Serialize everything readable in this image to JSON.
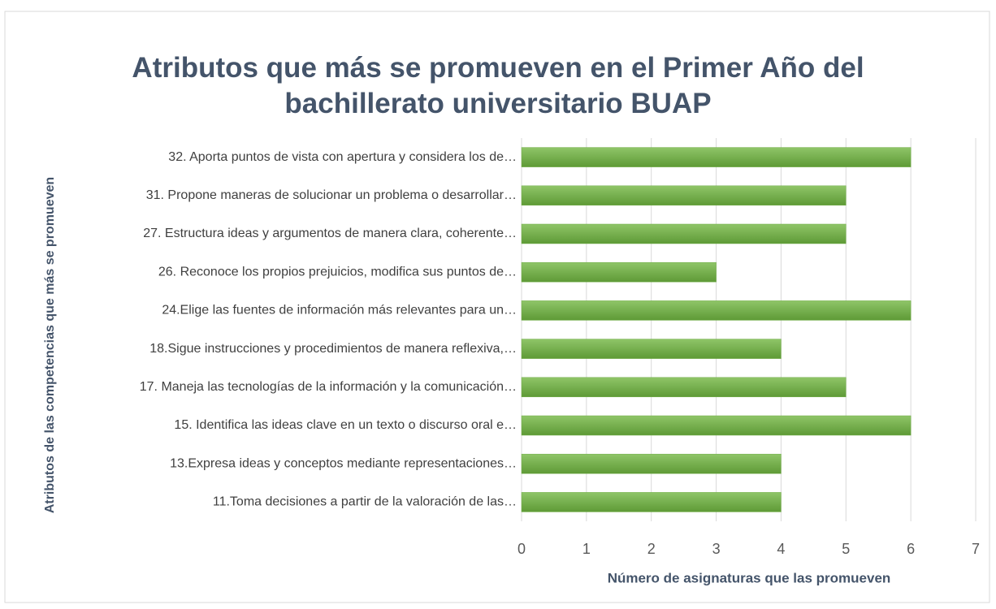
{
  "chart_data": {
    "type": "barh",
    "title": "Atributos que más se promueven en el Primer Año del bachillerato universitario BUAP",
    "xlabel": "Número de asignaturas que las promueven",
    "ylabel": "Atributos de las competencias que más se promueven",
    "categories": [
      "32. Aporta puntos de vista con apertura y considera los de…",
      "31. Propone maneras de solucionar un problema o desarrollar…",
      "27. Estructura ideas y argumentos de manera clara, coherente…",
      "26. Reconoce los propios prejuicios, modifica sus puntos de…",
      "24.Elige las fuentes de información más relevantes para un…",
      "18.Sigue instrucciones y procedimientos de manera reflexiva,…",
      "17. Maneja las tecnologías de la información y la comunicación…",
      "15. Identifica las ideas clave en un texto o discurso oral e…",
      "13.Expresa ideas y conceptos mediante representaciones…",
      "11.Toma decisiones a partir de la valoración de las…"
    ],
    "values": [
      6,
      5,
      5,
      3,
      6,
      4,
      5,
      6,
      4,
      4
    ],
    "color": "#70ad47",
    "xlim": [
      0,
      7
    ],
    "xticks": [
      0,
      1,
      2,
      3,
      4,
      5,
      6,
      7
    ],
    "grid": true
  }
}
